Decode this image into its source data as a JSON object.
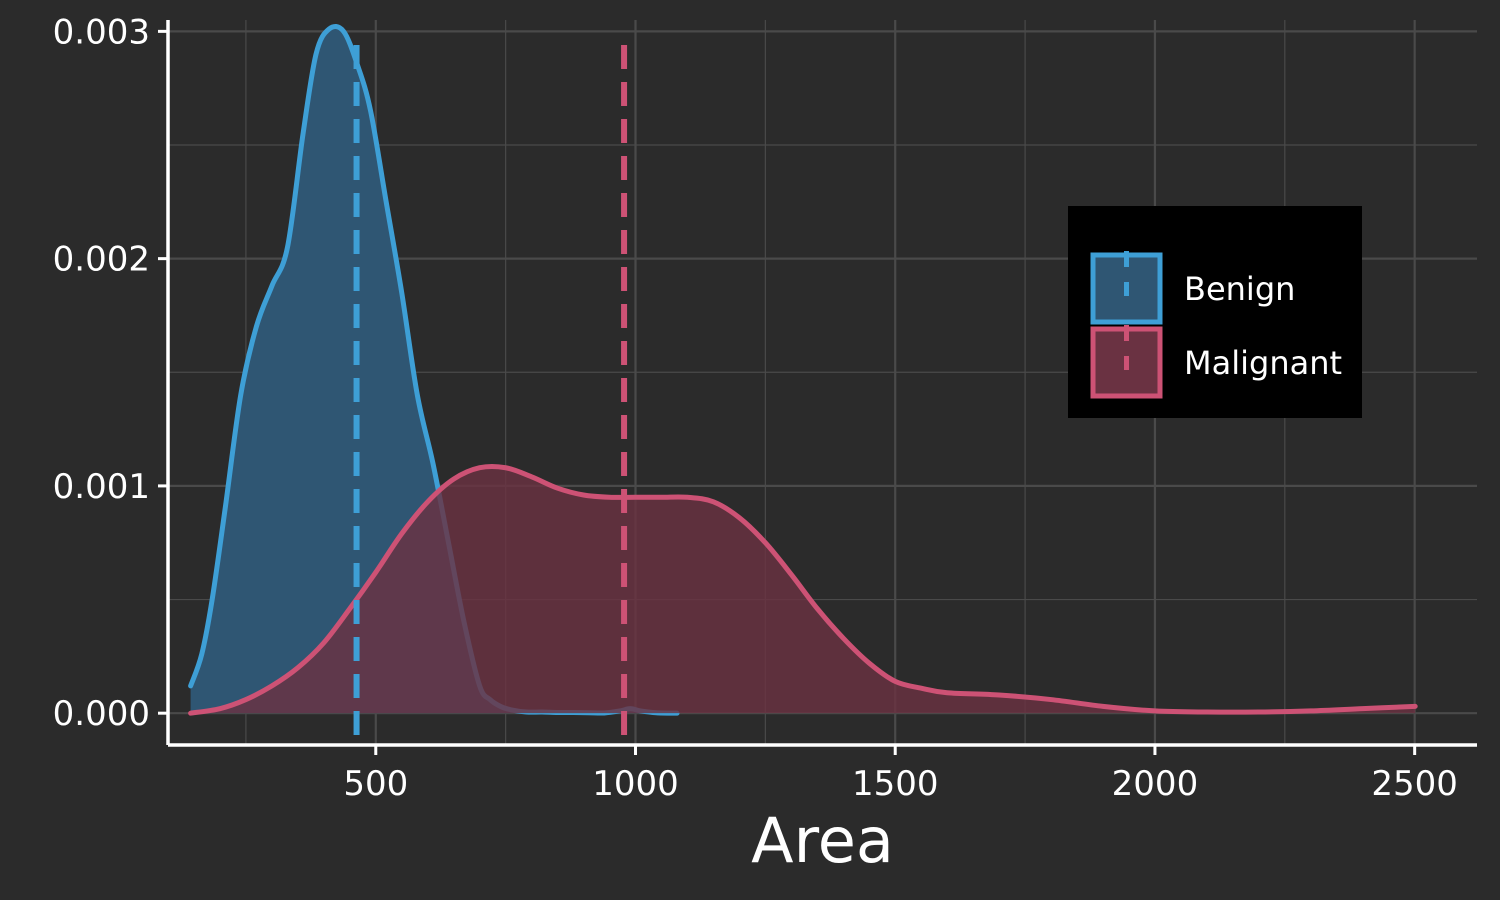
{
  "chart_data": {
    "type": "area",
    "xlabel": "Area",
    "ylabel": "",
    "xlim": [
      100,
      2620
    ],
    "ylim": [
      -0.00014,
      0.00305
    ],
    "x_ticks": [
      500,
      1000,
      1500,
      2000,
      2500
    ],
    "x_tick_labels": [
      "500",
      "1000",
      "1500",
      "2000",
      "2500"
    ],
    "y_ticks": [
      0.0,
      0.001,
      0.002,
      0.003
    ],
    "y_tick_labels": [
      "0.000",
      "0.001",
      "0.002",
      "0.003"
    ],
    "grid": true,
    "legend_position": "right",
    "series": [
      {
        "name": "Benign",
        "color": "#3e9fd6",
        "fill": "#2f5673",
        "mean": 463,
        "x": [
          143.5,
          165,
          185,
          210,
          240,
          270,
          300,
          330,
          360,
          385,
          410,
          438,
          465,
          490,
          520,
          550,
          580,
          610,
          640,
          670,
          700,
          720,
          740,
          760,
          790,
          820,
          850,
          880,
          910,
          940,
          970,
          990,
          1010,
          1040,
          1080
        ],
        "y": [
          0.00012,
          0.00026,
          0.0005,
          0.0009,
          0.0014,
          0.0017,
          0.00188,
          0.00205,
          0.00255,
          0.0029,
          0.00301,
          0.003,
          0.00285,
          0.00265,
          0.00225,
          0.00185,
          0.0014,
          0.0011,
          0.00075,
          0.0004,
          0.00012,
          6e-05,
          3e-05,
          1.5e-05,
          5e-06,
          5e-06,
          3e-06,
          3e-06,
          2e-06,
          1e-06,
          1e-05,
          2e-05,
          1e-05,
          2e-06,
          0.0
        ]
      },
      {
        "name": "Malignant",
        "color": "#cd5275",
        "fill": "#6a3242",
        "mean": 978,
        "x": [
          143.5,
          200,
          250,
          300,
          350,
          400,
          450,
          500,
          550,
          600,
          650,
          700,
          750,
          800,
          850,
          900,
          950,
          1000,
          1050,
          1100,
          1150,
          1200,
          1250,
          1300,
          1350,
          1400,
          1450,
          1500,
          1550,
          1600,
          1700,
          1800,
          1900,
          2000,
          2100,
          2200,
          2300,
          2400,
          2501
        ],
        "y": [
          0.0,
          2e-05,
          6e-05,
          0.00012,
          0.0002,
          0.00031,
          0.00046,
          0.00062,
          0.00079,
          0.00093,
          0.00103,
          0.00108,
          0.00108,
          0.00104,
          0.00099,
          0.00096,
          0.00095,
          0.00095,
          0.00095,
          0.00095,
          0.00093,
          0.00086,
          0.00075,
          0.00061,
          0.00046,
          0.00033,
          0.00022,
          0.00014,
          0.00011,
          9e-05,
          8e-05,
          6e-05,
          3e-05,
          1e-05,
          5e-06,
          5e-06,
          1e-05,
          2e-05,
          3e-05
        ]
      }
    ]
  }
}
